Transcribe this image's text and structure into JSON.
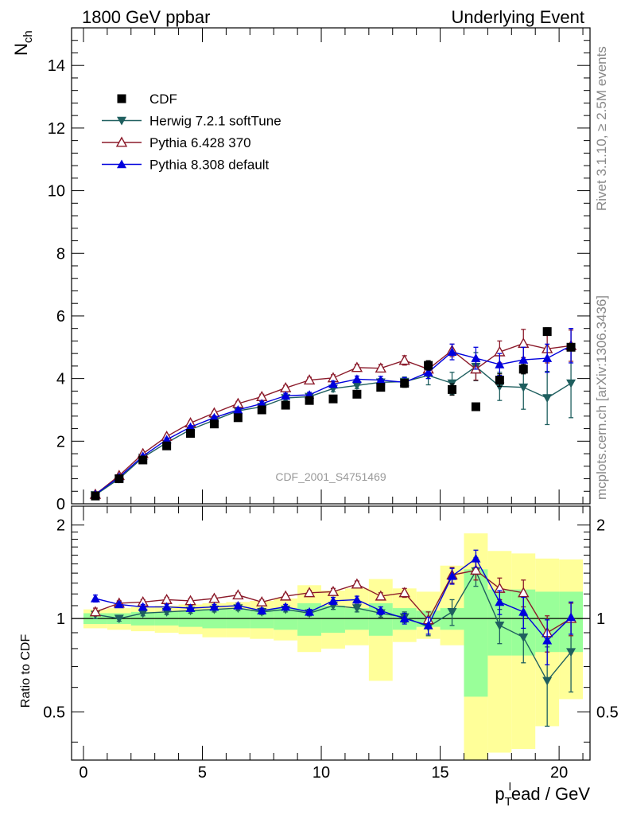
{
  "header": {
    "left": "1800 GeV ppbar",
    "right": "Underlying Event",
    "side_top": "Rivet 3.1.10, ≥ 2.5M events",
    "side_bottom": "mcplots.cern.ch [arXiv:1306.3436]",
    "watermark": "CDF_2001_S4751469"
  },
  "chart_data": [
    {
      "type": "line",
      "ylabel_main": "N",
      "ylabel_sub": "ch",
      "xlim": [
        -0.5,
        21.3
      ],
      "ylim": [
        0,
        15.2
      ],
      "y_ticks": [
        0,
        2,
        4,
        6,
        8,
        10,
        12,
        14
      ],
      "y_tick_labels": [
        "0",
        "2",
        "4",
        "6",
        "8",
        "10",
        "12",
        "14"
      ],
      "legend_position": "top-left",
      "x": [
        0.5,
        1.5,
        2.5,
        3.5,
        4.5,
        5.5,
        6.5,
        7.5,
        8.5,
        9.5,
        10.5,
        11.5,
        12.5,
        13.5,
        14.5,
        15.5,
        16.5,
        17.5,
        18.5,
        19.5,
        20.5
      ],
      "series": [
        {
          "name": "CDF",
          "style": "data",
          "color": "#000000",
          "marker": "square",
          "values": [
            0.25,
            0.8,
            1.4,
            1.85,
            2.25,
            2.55,
            2.75,
            3.0,
            3.15,
            3.3,
            3.35,
            3.5,
            3.72,
            3.85,
            4.42,
            3.65,
            3.1,
            3.95,
            4.3,
            5.5,
            5.0
          ],
          "errors": [
            0.02,
            0.03,
            0.04,
            0.05,
            0.05,
            0.05,
            0.06,
            0.06,
            0.07,
            0.08,
            0.09,
            0.1,
            0.11,
            0.13,
            0.15,
            0.18,
            0.05,
            0.2,
            0.15,
            0.12,
            0.1
          ]
        },
        {
          "name": "Herwig 7.2.1 softTune",
          "style": "mc",
          "color": "#1f5f5f",
          "marker": "triangle-down",
          "values": [
            0.28,
            0.8,
            1.48,
            1.95,
            2.37,
            2.67,
            2.97,
            3.1,
            3.38,
            3.42,
            3.68,
            3.78,
            3.88,
            3.9,
            4.1,
            3.85,
            4.38,
            3.75,
            3.72,
            3.38,
            3.85
          ],
          "errors": [
            0.03,
            0.03,
            0.04,
            0.05,
            0.05,
            0.06,
            0.06,
            0.07,
            0.08,
            0.08,
            0.1,
            0.1,
            0.12,
            0.15,
            0.3,
            0.35,
            0.45,
            0.45,
            0.7,
            0.85,
            1.1
          ]
        },
        {
          "name": "Pythia 6.428 370",
          "style": "mc",
          "color": "#8b1a2a",
          "marker": "triangle-open",
          "values": [
            0.3,
            0.9,
            1.6,
            2.15,
            2.58,
            2.9,
            3.2,
            3.42,
            3.7,
            3.95,
            4.02,
            4.35,
            4.33,
            4.58,
            4.3,
            4.9,
            4.3,
            4.85,
            5.12,
            4.95,
            5.05
          ],
          "errors": [
            0.03,
            0.03,
            0.04,
            0.05,
            0.06,
            0.06,
            0.07,
            0.08,
            0.08,
            0.09,
            0.1,
            0.1,
            0.12,
            0.15,
            0.2,
            0.2,
            0.35,
            0.35,
            0.45,
            0.45,
            0.5
          ]
        },
        {
          "name": "Pythia 8.308 default",
          "style": "mc",
          "color": "#0000dd",
          "marker": "triangle-up",
          "values": [
            0.3,
            0.85,
            1.52,
            2.05,
            2.45,
            2.75,
            3.0,
            3.2,
            3.45,
            3.48,
            3.82,
            3.98,
            3.95,
            3.88,
            4.2,
            4.85,
            4.65,
            4.45,
            4.6,
            4.65,
            5.05
          ],
          "errors": [
            0.03,
            0.03,
            0.04,
            0.05,
            0.05,
            0.06,
            0.06,
            0.07,
            0.08,
            0.08,
            0.1,
            0.1,
            0.12,
            0.15,
            0.2,
            0.25,
            0.35,
            0.35,
            0.4,
            0.45,
            0.55
          ]
        }
      ]
    },
    {
      "type": "line",
      "ylabel": "Ratio to CDF",
      "xlabel_main": "p",
      "xlabel_sub": "T",
      "xlabel_sup": "l",
      "xlabel_rest": "ead / GeV",
      "xlim": [
        -0.5,
        21.3
      ],
      "ylim": [
        0.35,
        2.3
      ],
      "x_ticks": [
        0,
        5,
        10,
        15,
        20
      ],
      "x_tick_labels": [
        "0",
        "5",
        "10",
        "15",
        "20"
      ],
      "y_ticks": [
        0.5,
        1,
        2
      ],
      "y_tick_labels": [
        "0.5",
        "1",
        "2"
      ],
      "reference_line": 1,
      "bands": {
        "x_low": [
          0,
          1,
          2,
          3,
          4,
          5,
          6,
          7,
          8,
          9,
          10,
          11,
          12,
          13,
          14,
          15,
          16,
          17,
          18,
          19,
          20
        ],
        "x_high": [
          1,
          2,
          3,
          4,
          5,
          6,
          7,
          8,
          9,
          10,
          11,
          12,
          13,
          14,
          15,
          16,
          17,
          18,
          19,
          20,
          21
        ],
        "yellow_low": [
          0.93,
          0.92,
          0.91,
          0.9,
          0.89,
          0.87,
          0.87,
          0.86,
          0.85,
          0.78,
          0.8,
          0.82,
          0.63,
          0.84,
          0.86,
          0.82,
          0.35,
          0.37,
          0.38,
          0.45,
          0.55
        ],
        "yellow_high": [
          1.07,
          1.08,
          1.09,
          1.1,
          1.11,
          1.12,
          1.13,
          1.14,
          1.16,
          1.28,
          1.23,
          1.25,
          1.34,
          1.25,
          1.22,
          1.48,
          1.88,
          1.65,
          1.62,
          1.56,
          1.55
        ],
        "green_low": [
          0.96,
          0.96,
          0.95,
          0.95,
          0.94,
          0.93,
          0.93,
          0.93,
          0.92,
          0.88,
          0.9,
          0.92,
          0.88,
          0.92,
          0.94,
          0.92,
          0.56,
          0.76,
          0.76,
          0.78,
          0.78
        ],
        "green_high": [
          1.04,
          1.04,
          1.05,
          1.05,
          1.06,
          1.07,
          1.07,
          1.07,
          1.08,
          1.12,
          1.1,
          1.08,
          1.12,
          1.08,
          1.06,
          1.08,
          1.44,
          1.24,
          1.24,
          1.22,
          1.22
        ]
      },
      "series": [
        {
          "name": "Herwig 7.2.1 softTune",
          "color": "#1f5f5f",
          "marker": "triangle-down",
          "values": [
            1.03,
            1.0,
            1.04,
            1.05,
            1.06,
            1.07,
            1.08,
            1.05,
            1.07,
            1.04,
            1.1,
            1.08,
            1.04,
            1.01,
            0.94,
            1.05,
            1.42,
            0.95,
            0.87,
            0.63,
            0.78
          ],
          "errors": [
            0.03,
            0.02,
            0.02,
            0.02,
            0.02,
            0.02,
            0.02,
            0.02,
            0.02,
            0.02,
            0.03,
            0.03,
            0.03,
            0.04,
            0.06,
            0.1,
            0.15,
            0.12,
            0.15,
            0.18,
            0.2
          ]
        },
        {
          "name": "Pythia 6.428 370",
          "color": "#8b1a2a",
          "marker": "triangle-open",
          "values": [
            1.05,
            1.12,
            1.13,
            1.15,
            1.14,
            1.16,
            1.19,
            1.13,
            1.18,
            1.21,
            1.22,
            1.29,
            1.18,
            1.21,
            0.99,
            1.38,
            1.43,
            1.25,
            1.21,
            0.9,
            1.0
          ],
          "errors": [
            0.03,
            0.02,
            0.02,
            0.02,
            0.02,
            0.02,
            0.02,
            0.02,
            0.02,
            0.02,
            0.03,
            0.03,
            0.03,
            0.04,
            0.06,
            0.08,
            0.1,
            0.1,
            0.12,
            0.12,
            0.12
          ]
        },
        {
          "name": "Pythia 8.308 default",
          "color": "#0000dd",
          "marker": "triangle-up",
          "values": [
            1.16,
            1.11,
            1.09,
            1.09,
            1.08,
            1.09,
            1.1,
            1.06,
            1.09,
            1.05,
            1.14,
            1.15,
            1.06,
            1.0,
            0.95,
            1.37,
            1.56,
            1.13,
            1.05,
            0.85,
            1.01
          ],
          "errors": [
            0.03,
            0.02,
            0.02,
            0.02,
            0.02,
            0.02,
            0.02,
            0.02,
            0.02,
            0.02,
            0.03,
            0.03,
            0.03,
            0.04,
            0.06,
            0.08,
            0.1,
            0.1,
            0.12,
            0.14,
            0.12
          ]
        }
      ]
    }
  ]
}
